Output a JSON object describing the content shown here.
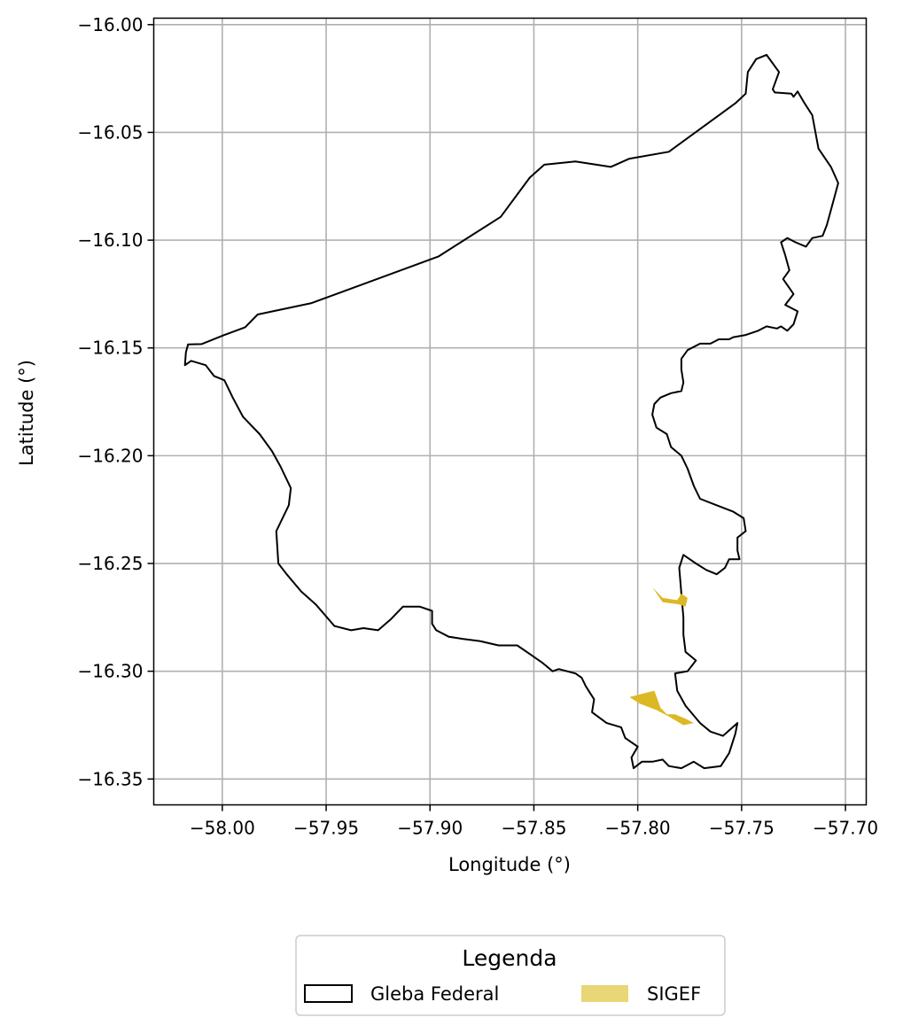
{
  "chart_data": {
    "type": "map",
    "xlabel": "Longitude (°)",
    "ylabel": "Latitude (°)",
    "xlim": [
      -58.033,
      -57.69
    ],
    "ylim": [
      -16.362,
      -15.997
    ],
    "grid": true,
    "x_ticks": [
      -58.0,
      -57.95,
      -57.9,
      -57.85,
      -57.8,
      -57.75,
      -57.7
    ],
    "y_ticks": [
      -16.0,
      -16.05,
      -16.1,
      -16.15,
      -16.2,
      -16.25,
      -16.3,
      -16.35
    ],
    "x_tick_labels": [
      "−58.00",
      "−57.95",
      "−57.90",
      "−57.85",
      "−57.80",
      "−57.75",
      "−57.70"
    ],
    "y_tick_labels": [
      "−16.00",
      "−16.05",
      "−16.10",
      "−16.15",
      "−16.20",
      "−16.25",
      "−16.30",
      "−16.35"
    ],
    "legend": {
      "title": "Legenda",
      "placement": "bottom-center",
      "entries": [
        {
          "label": "Gleba Federal",
          "style": "outline",
          "color": "#000000"
        },
        {
          "label": "SIGEF",
          "style": "fill",
          "color": "#e8d677"
        }
      ]
    },
    "series": [
      {
        "name": "Gleba Federal",
        "kind": "polygon",
        "stroke": "#000000",
        "fill": "none",
        "coords": [
          [
            -58.0165,
            -16.1484
          ],
          [
            -58.01,
            -16.1482
          ],
          [
            -57.999,
            -16.144
          ],
          [
            -57.989,
            -16.1404
          ],
          [
            -57.983,
            -16.1345
          ],
          [
            -57.957,
            -16.1292
          ],
          [
            -57.896,
            -16.1076
          ],
          [
            -57.866,
            -16.0892
          ],
          [
            -57.852,
            -16.071
          ],
          [
            -57.845,
            -16.065
          ],
          [
            -57.83,
            -16.0635
          ],
          [
            -57.813,
            -16.066
          ],
          [
            -57.804,
            -16.0622
          ],
          [
            -57.785,
            -16.059
          ],
          [
            -57.753,
            -16.0365
          ],
          [
            -57.748,
            -16.032
          ],
          [
            -57.747,
            -16.022
          ],
          [
            -57.743,
            -16.016
          ],
          [
            -57.738,
            -16.014
          ],
          [
            -57.732,
            -16.022
          ],
          [
            -57.735,
            -16.03
          ],
          [
            -57.734,
            -16.0315
          ],
          [
            -57.726,
            -16.032
          ],
          [
            -57.725,
            -16.0335
          ],
          [
            -57.723,
            -16.031
          ],
          [
            -57.72,
            -16.036
          ],
          [
            -57.716,
            -16.042
          ],
          [
            -57.713,
            -16.0575
          ],
          [
            -57.707,
            -16.066
          ],
          [
            -57.7035,
            -16.0735
          ],
          [
            -57.705,
            -16.079
          ],
          [
            -57.707,
            -16.086
          ],
          [
            -57.709,
            -16.093
          ],
          [
            -57.711,
            -16.098
          ],
          [
            -57.716,
            -16.099
          ],
          [
            -57.719,
            -16.103
          ],
          [
            -57.724,
            -16.101
          ],
          [
            -57.728,
            -16.099
          ],
          [
            -57.731,
            -16.101
          ],
          [
            -57.729,
            -16.107
          ],
          [
            -57.727,
            -16.114
          ],
          [
            -57.73,
            -16.118
          ],
          [
            -57.725,
            -16.125
          ],
          [
            -57.729,
            -16.13
          ],
          [
            -57.723,
            -16.133
          ],
          [
            -57.725,
            -16.139
          ],
          [
            -57.728,
            -16.142
          ],
          [
            -57.731,
            -16.14
          ],
          [
            -57.733,
            -16.141
          ],
          [
            -57.738,
            -16.14
          ],
          [
            -57.742,
            -16.142
          ],
          [
            -57.748,
            -16.144
          ],
          [
            -57.754,
            -16.145
          ],
          [
            -57.756,
            -16.146
          ],
          [
            -57.761,
            -16.146
          ],
          [
            -57.765,
            -16.148
          ],
          [
            -57.77,
            -16.148
          ],
          [
            -57.776,
            -16.151
          ],
          [
            -57.779,
            -16.155
          ],
          [
            -57.779,
            -16.16
          ],
          [
            -57.778,
            -16.166
          ],
          [
            -57.779,
            -16.17
          ],
          [
            -57.784,
            -16.171
          ],
          [
            -57.789,
            -16.173
          ],
          [
            -57.792,
            -16.176
          ],
          [
            -57.793,
            -16.181
          ],
          [
            -57.791,
            -16.187
          ],
          [
            -57.786,
            -16.19
          ],
          [
            -57.784,
            -16.196
          ],
          [
            -57.779,
            -16.2
          ],
          [
            -57.776,
            -16.206
          ],
          [
            -57.773,
            -16.214
          ],
          [
            -57.77,
            -16.22
          ],
          [
            -57.762,
            -16.223
          ],
          [
            -57.754,
            -16.226
          ],
          [
            -57.749,
            -16.229
          ],
          [
            -57.748,
            -16.235
          ],
          [
            -57.752,
            -16.238
          ],
          [
            -57.752,
            -16.244
          ],
          [
            -57.751,
            -16.248
          ],
          [
            -57.756,
            -16.248
          ],
          [
            -57.758,
            -16.252
          ],
          [
            -57.762,
            -16.255
          ],
          [
            -57.767,
            -16.253
          ],
          [
            -57.772,
            -16.25
          ],
          [
            -57.778,
            -16.246
          ],
          [
            -57.78,
            -16.252
          ],
          [
            -57.779,
            -16.264
          ],
          [
            -57.778,
            -16.275
          ],
          [
            -57.778,
            -16.283
          ],
          [
            -57.777,
            -16.291
          ],
          [
            -57.772,
            -16.295
          ],
          [
            -57.776,
            -16.3
          ],
          [
            -57.782,
            -16.301
          ],
          [
            -57.781,
            -16.309
          ],
          [
            -57.777,
            -16.316
          ],
          [
            -57.77,
            -16.324
          ],
          [
            -57.765,
            -16.328
          ],
          [
            -57.759,
            -16.33
          ],
          [
            -57.752,
            -16.324
          ],
          [
            -57.753,
            -16.329
          ],
          [
            -57.756,
            -16.338
          ],
          [
            -57.76,
            -16.344
          ],
          [
            -57.768,
            -16.345
          ],
          [
            -57.773,
            -16.342
          ],
          [
            -57.779,
            -16.345
          ],
          [
            -57.785,
            -16.344
          ],
          [
            -57.788,
            -16.341
          ],
          [
            -57.793,
            -16.342
          ],
          [
            -57.798,
            -16.342
          ],
          [
            -57.802,
            -16.345
          ],
          [
            -57.803,
            -16.34
          ],
          [
            -57.8,
            -16.335
          ],
          [
            -57.806,
            -16.331
          ],
          [
            -57.808,
            -16.326
          ],
          [
            -57.815,
            -16.324
          ],
          [
            -57.822,
            -16.319
          ],
          [
            -57.821,
            -16.313
          ],
          [
            -57.825,
            -16.307
          ],
          [
            -57.827,
            -16.303
          ],
          [
            -57.83,
            -16.301
          ],
          [
            -57.838,
            -16.299
          ],
          [
            -57.841,
            -16.3
          ],
          [
            -57.846,
            -16.296
          ],
          [
            -57.852,
            -16.292
          ],
          [
            -57.858,
            -16.288
          ],
          [
            -57.867,
            -16.288
          ],
          [
            -57.876,
            -16.286
          ],
          [
            -57.884,
            -16.285
          ],
          [
            -57.891,
            -16.284
          ],
          [
            -57.897,
            -16.281
          ],
          [
            -57.899,
            -16.278
          ],
          [
            -57.899,
            -16.272
          ],
          [
            -57.905,
            -16.27
          ],
          [
            -57.913,
            -16.27
          ],
          [
            -57.919,
            -16.276
          ],
          [
            -57.925,
            -16.281
          ],
          [
            -57.932,
            -16.28
          ],
          [
            -57.938,
            -16.281
          ],
          [
            -57.946,
            -16.279
          ],
          [
            -57.955,
            -16.269
          ],
          [
            -57.962,
            -16.263
          ],
          [
            -57.969,
            -16.255
          ],
          [
            -57.973,
            -16.25
          ],
          [
            -57.974,
            -16.235
          ],
          [
            -57.968,
            -16.223
          ],
          [
            -57.967,
            -16.215
          ],
          [
            -57.972,
            -16.205
          ],
          [
            -57.976,
            -16.198
          ],
          [
            -57.982,
            -16.19
          ],
          [
            -57.99,
            -16.182
          ],
          [
            -57.995,
            -16.173
          ],
          [
            -57.999,
            -16.165
          ],
          [
            -58.004,
            -16.163
          ],
          [
            -58.008,
            -16.158
          ],
          [
            -58.015,
            -16.156
          ],
          [
            -58.018,
            -16.158
          ],
          [
            -58.0175,
            -16.152
          ],
          [
            -58.0165,
            -16.1484
          ]
        ]
      },
      {
        "name": "SIGEF",
        "kind": "polygon",
        "stroke": "none",
        "fill": "#dcb824",
        "coords": [
          [
            -57.793,
            -16.261
          ],
          [
            -57.788,
            -16.266
          ],
          [
            -57.781,
            -16.267
          ],
          [
            -57.779,
            -16.264
          ],
          [
            -57.776,
            -16.266
          ],
          [
            -57.777,
            -16.27
          ],
          [
            -57.78,
            -16.269
          ],
          [
            -57.788,
            -16.268
          ],
          [
            -57.793,
            -16.261
          ]
        ]
      },
      {
        "name": "SIGEF",
        "kind": "polygon",
        "stroke": "none",
        "fill": "#dcb824",
        "coords": [
          [
            -57.804,
            -16.312
          ],
          [
            -57.796,
            -16.31
          ],
          [
            -57.792,
            -16.309
          ],
          [
            -57.789,
            -16.317
          ],
          [
            -57.786,
            -16.32
          ],
          [
            -57.782,
            -16.32
          ],
          [
            -57.777,
            -16.322
          ],
          [
            -57.773,
            -16.324
          ],
          [
            -57.778,
            -16.325
          ],
          [
            -57.785,
            -16.321
          ],
          [
            -57.791,
            -16.318
          ],
          [
            -57.799,
            -16.315
          ],
          [
            -57.804,
            -16.312
          ]
        ]
      }
    ]
  }
}
